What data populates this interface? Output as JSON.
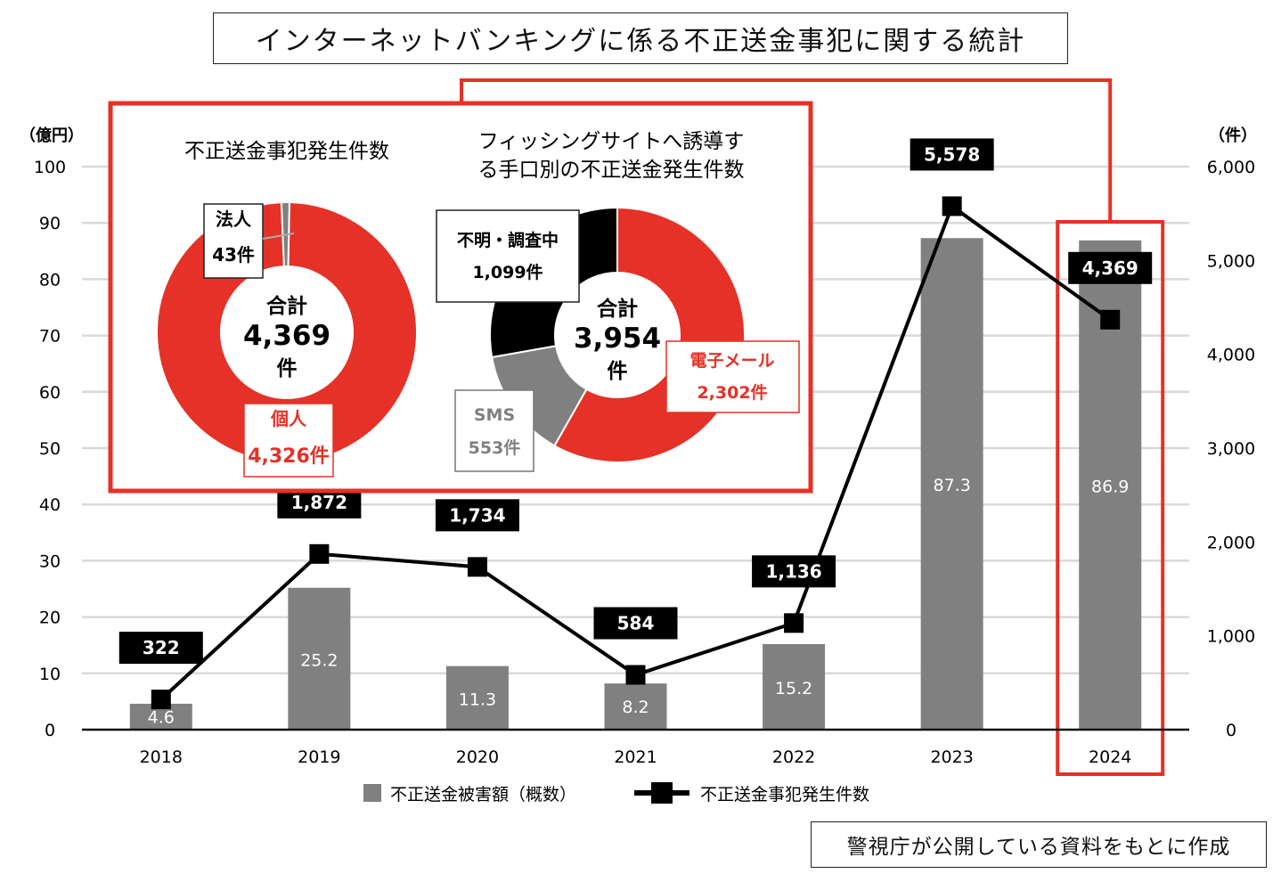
{
  "title": "インターネットバンキングに係る不正送金事犯に関する統計",
  "source_note": "警視庁が公開している資料をもとに作成",
  "colors": {
    "bar": "#808080",
    "line": "#000000",
    "highlight": "#e53127",
    "grid": "#d9d9d9",
    "donut_red": "#e53127",
    "donut_gray": "#808080",
    "donut_black": "#000000"
  },
  "chart_data": [
    {
      "type": "bar",
      "categories": [
        "2018",
        "2019",
        "2020",
        "2021",
        "2022",
        "2023",
        "2024"
      ],
      "y_left_unit": "（億円）",
      "y_right_unit": "（件）",
      "y_left_ticks": [
        "0",
        "10",
        "20",
        "30",
        "40",
        "50",
        "60",
        "70",
        "80",
        "90",
        "100"
      ],
      "y_right_ticks": [
        "0",
        "1,000",
        "2,000",
        "3,000",
        "4,000",
        "5,000",
        "6,000"
      ],
      "ylim_left": [
        0,
        100
      ],
      "ylim_right": [
        0,
        6000
      ],
      "grid": true,
      "legend_position": "bottom",
      "highlighted_category": "2024",
      "series": [
        {
          "name": "不正送金被害額（概数）",
          "type": "bar",
          "axis": "left",
          "values": [
            4.6,
            25.2,
            11.3,
            8.2,
            15.2,
            87.3,
            86.9
          ],
          "labels": [
            "4.6",
            "25.2",
            "11.3",
            "8.2",
            "15.2",
            "87.3",
            "86.9"
          ]
        },
        {
          "name": "不正送金事犯発生件数",
          "type": "line",
          "axis": "right",
          "values": [
            322,
            1872,
            1734,
            584,
            1136,
            5578,
            4369
          ],
          "labels": [
            "322",
            "1,872",
            "1,734",
            "584",
            "1,136",
            "5,578",
            "4,369"
          ]
        }
      ]
    },
    {
      "type": "pie",
      "title": "不正送金事犯発生件数",
      "center_label": "合計",
      "center_value": "4,369",
      "center_unit": "件",
      "slices": [
        {
          "name": "個人",
          "value": 4326,
          "value_label": "4,326件",
          "color": "#e53127"
        },
        {
          "name": "法人",
          "value": 43,
          "value_label": "43件",
          "color": "#808080"
        }
      ]
    },
    {
      "type": "pie",
      "title_lines": [
        "フィッシングサイトへ誘導す",
        "る手口別の不正送金発生件数"
      ],
      "center_label": "合計",
      "center_value": "3,954",
      "center_unit": "件",
      "slices": [
        {
          "name": "電子メール",
          "value": 2302,
          "value_label": "2,302件",
          "color": "#e53127"
        },
        {
          "name": "SMS",
          "value": 553,
          "value_label": "553件",
          "color": "#808080"
        },
        {
          "name": "不明・調査中",
          "value": 1099,
          "value_label": "1,099件",
          "color": "#000000"
        }
      ]
    }
  ]
}
